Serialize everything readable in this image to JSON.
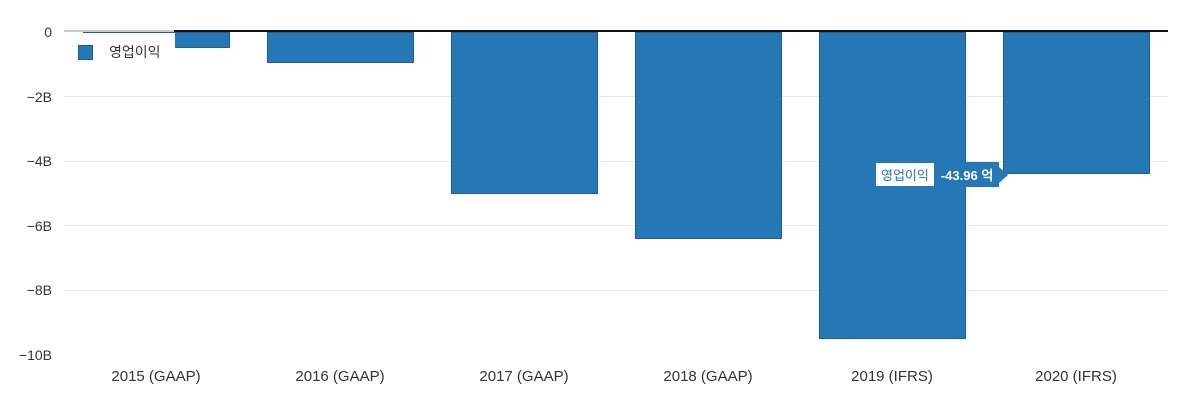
{
  "chart_data": {
    "type": "bar",
    "title": "",
    "categories": [
      "2015 (GAAP)",
      "2016 (GAAP)",
      "2017 (GAAP)",
      "2018 (GAAP)",
      "2019 (IFRS)",
      "2020 (IFRS)"
    ],
    "series": [
      {
        "name": "영업이익",
        "values": [
          -0.5,
          -0.96,
          -5.03,
          -6.43,
          -9.53,
          -4.396
        ]
      }
    ],
    "value_unit": "B",
    "y_ticks": [
      {
        "label": "0",
        "value": 0,
        "gridline": false
      },
      {
        "label": "−2B",
        "value": -2,
        "gridline": true
      },
      {
        "label": "−4B",
        "value": -4,
        "gridline": true
      },
      {
        "label": "−6B",
        "value": -6,
        "gridline": true
      },
      {
        "label": "−8B",
        "value": -8,
        "gridline": true
      },
      {
        "label": "−10B",
        "value": -10,
        "gridline": false
      }
    ],
    "ylim": [
      -10.8,
      0.35
    ],
    "grid": "horizontal",
    "legend_position": "top-left-inside"
  },
  "legend": {
    "label": "영업이익"
  },
  "tooltip": {
    "series_label": "영업이익",
    "value_text": "-43.96 억",
    "target_category": "2020 (IFRS)"
  },
  "colors": {
    "bar_fill": "#2577b5",
    "bar_border": "#1e5d8e",
    "gridline": "#e8e8e8",
    "zero_line_left_segment": "#c9c9c9",
    "zero_line": "#111111",
    "axis_text": "#333333",
    "tooltip_accent": "#2577b5",
    "background": "#ffffff"
  }
}
